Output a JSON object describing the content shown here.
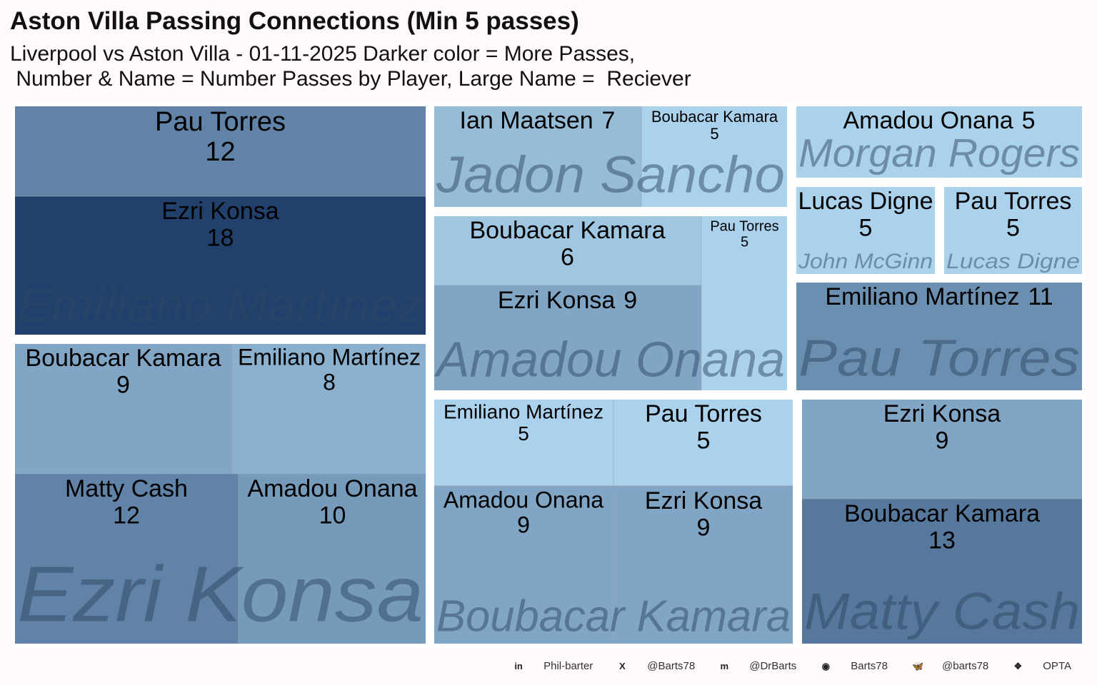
{
  "title": "Aston Villa Passing Connections (Min 5 passes)",
  "subtitle": "Liverpool vs Aston Villa - 01-11-2025 Darker color = More Passes,\n Number & Name = Number Passes by Player, Large Name =  Reciever",
  "footer": [
    {
      "icon": "linkedin-icon",
      "text": "Phil-barter"
    },
    {
      "icon": "x-twitter-icon",
      "text": "@Barts78"
    },
    {
      "icon": "mastodon-icon",
      "text": "@DrBarts"
    },
    {
      "icon": "github-icon",
      "text": "Barts78"
    },
    {
      "icon": "bluesky-icon",
      "text": "@barts78"
    },
    {
      "icon": "dropbox-icon",
      "text": "OPTA"
    }
  ],
  "colors": {
    "low": "#abd2ec",
    "high": "#21406b",
    "background": "#fff9f9"
  },
  "chart_data": {
    "type": "treemap",
    "value_range": [
      5,
      18
    ],
    "groups": [
      {
        "receiver": "Emiliano Martínez",
        "passers": [
          {
            "name": "Pau Torres",
            "value": 12
          },
          {
            "name": "Ezri Konsa",
            "value": 18
          }
        ]
      },
      {
        "receiver": "Ezri Konsa",
        "passers": [
          {
            "name": "Boubacar Kamara",
            "value": 9
          },
          {
            "name": "Emiliano Martínez",
            "value": 8
          },
          {
            "name": "Matty Cash",
            "value": 12
          },
          {
            "name": "Amadou Onana",
            "value": 10
          }
        ]
      },
      {
        "receiver": "Jadon Sancho",
        "passers": [
          {
            "name": "Ian Maatsen",
            "value": 7
          },
          {
            "name": "Boubacar Kamara",
            "value": 5
          }
        ]
      },
      {
        "receiver": "Amadou Onana",
        "passers": [
          {
            "name": "Boubacar Kamara",
            "value": 6
          },
          {
            "name": "Ezri Konsa",
            "value": 9
          },
          {
            "name": "Pau Torres",
            "value": 5
          }
        ]
      },
      {
        "receiver": "Boubacar Kamara",
        "passers": [
          {
            "name": "Emiliano Martínez",
            "value": 5
          },
          {
            "name": "Pau Torres",
            "value": 5
          },
          {
            "name": "Amadou Onana",
            "value": 9
          },
          {
            "name": "Ezri Konsa",
            "value": 9
          }
        ]
      },
      {
        "receiver": "Morgan Rogers",
        "passers": [
          {
            "name": "Amadou Onana",
            "value": 5
          }
        ]
      },
      {
        "receiver": "John McGinn",
        "passers": [
          {
            "name": "Lucas Digne",
            "value": 5
          }
        ]
      },
      {
        "receiver": "Lucas Digne",
        "passers": [
          {
            "name": "Pau Torres",
            "value": 5
          }
        ]
      },
      {
        "receiver": "Pau Torres",
        "passers": [
          {
            "name": "Emiliano Martínez",
            "value": 11
          }
        ]
      },
      {
        "receiver": "Matty Cash",
        "passers": [
          {
            "name": "Ezri Konsa",
            "value": 9
          },
          {
            "name": "Boubacar Kamara",
            "value": 13
          }
        ]
      }
    ]
  }
}
